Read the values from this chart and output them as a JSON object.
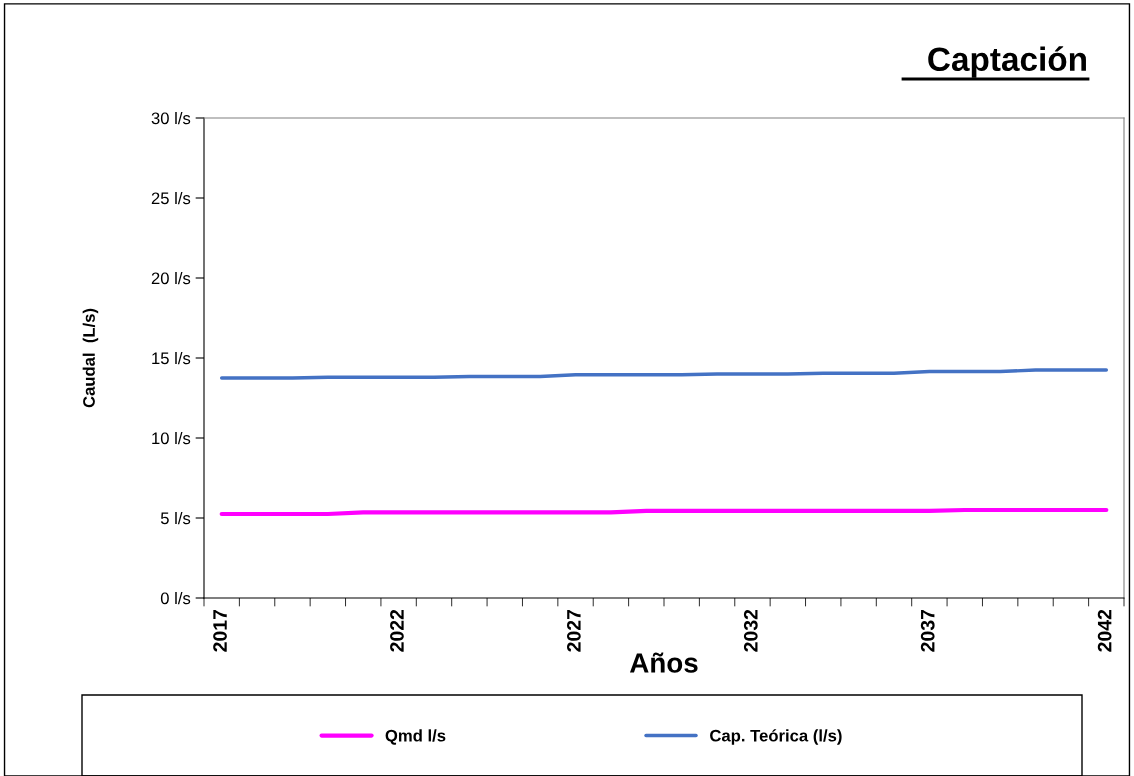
{
  "chart_data": {
    "type": "line",
    "title": "Captación",
    "xlabel": "Años",
    "ylabel": "Caudal  (L/s)",
    "categories": [
      "2017",
      null,
      null,
      null,
      null,
      "2022",
      null,
      null,
      null,
      null,
      "2027",
      null,
      null,
      null,
      null,
      "2032",
      null,
      null,
      null,
      null,
      "2037",
      null,
      null,
      null,
      null,
      "2042"
    ],
    "series": [
      {
        "name": "Qmd l/s",
        "color": "#ff00ff",
        "values": [
          5.25,
          5.25,
          5.25,
          5.25,
          5.35,
          5.35,
          5.35,
          5.35,
          5.35,
          5.35,
          5.35,
          5.35,
          5.45,
          5.45,
          5.45,
          5.45,
          5.45,
          5.45,
          5.45,
          5.45,
          5.45,
          5.5,
          5.5,
          5.5,
          5.5,
          5.5
        ]
      },
      {
        "name": "Cap. Teórica (l/s)",
        "color": "#4472c4",
        "values": [
          13.75,
          13.75,
          13.75,
          13.8,
          13.8,
          13.8,
          13.8,
          13.85,
          13.85,
          13.85,
          13.95,
          13.95,
          13.95,
          13.95,
          14.0,
          14.0,
          14.0,
          14.05,
          14.05,
          14.05,
          14.15,
          14.15,
          14.15,
          14.25,
          14.25,
          14.25
        ]
      }
    ],
    "ylim": [
      0,
      30
    ],
    "yticks": [
      {
        "value": 0,
        "label": "0 l/s"
      },
      {
        "value": 5,
        "label": "5 l/s"
      },
      {
        "value": 10,
        "label": "10 l/s"
      },
      {
        "value": 15,
        "label": "15 l/s"
      },
      {
        "value": 20,
        "label": "20 l/s"
      },
      {
        "value": 25,
        "label": "25 l/s"
      },
      {
        "value": 30,
        "label": "30 l/s"
      }
    ],
    "grid": false,
    "legend": "bottom",
    "marker": "none",
    "line_style": "solid"
  }
}
